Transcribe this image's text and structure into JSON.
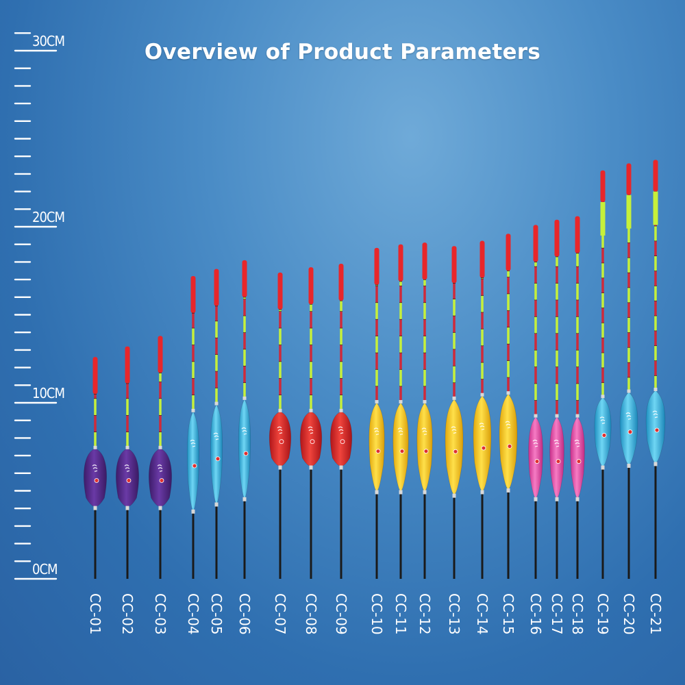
{
  "title": "Overview of Product Parameters",
  "ruler": {
    "unit": "CM",
    "labels": [
      {
        "value": 0,
        "text": "0CM"
      },
      {
        "value": 10,
        "text": "10CM"
      },
      {
        "value": 20,
        "text": "20CM"
      },
      {
        "value": 30,
        "text": "30CM"
      }
    ]
  },
  "colors": {
    "purple": "#5a2f8f",
    "cyan": "#3bb8e0",
    "red": "#e0262a",
    "yellow": "#f5c518",
    "pink": "#ea4fa8",
    "tip_red": "#e8262a",
    "tip_green": "#c6f03a"
  },
  "floats": [
    {
      "code": "CC-01",
      "color": "purple",
      "total_cm": 12.6
    },
    {
      "code": "CC-02",
      "color": "purple",
      "total_cm": 13.2
    },
    {
      "code": "CC-03",
      "color": "purple",
      "total_cm": 13.8
    },
    {
      "code": "CC-04",
      "color": "cyan",
      "total_cm": 17.2
    },
    {
      "code": "CC-05",
      "color": "cyan",
      "total_cm": 17.6
    },
    {
      "code": "CC-06",
      "color": "cyan",
      "total_cm": 18.1
    },
    {
      "code": "CC-07",
      "color": "red",
      "total_cm": 17.4
    },
    {
      "code": "CC-08",
      "color": "red",
      "total_cm": 17.7
    },
    {
      "code": "CC-09",
      "color": "red",
      "total_cm": 17.9
    },
    {
      "code": "CC-10",
      "color": "yellow",
      "total_cm": 18.8
    },
    {
      "code": "CC-11",
      "color": "yellow",
      "total_cm": 19.0
    },
    {
      "code": "CC-12",
      "color": "yellow",
      "total_cm": 19.1
    },
    {
      "code": "CC-13",
      "color": "yellow",
      "total_cm": 18.9
    },
    {
      "code": "CC-14",
      "color": "yellow",
      "total_cm": 19.2
    },
    {
      "code": "CC-15",
      "color": "yellow",
      "total_cm": 19.6
    },
    {
      "code": "CC-16",
      "color": "pink",
      "total_cm": 20.1
    },
    {
      "code": "CC-17",
      "color": "pink",
      "total_cm": 20.4
    },
    {
      "code": "CC-18",
      "color": "pink",
      "total_cm": 20.6
    },
    {
      "code": "CC-19",
      "color": "cyan",
      "total_cm": 23.2
    },
    {
      "code": "CC-20",
      "color": "cyan",
      "total_cm": 23.6
    },
    {
      "code": "CC-21",
      "color": "cyan",
      "total_cm": 23.8
    }
  ]
}
